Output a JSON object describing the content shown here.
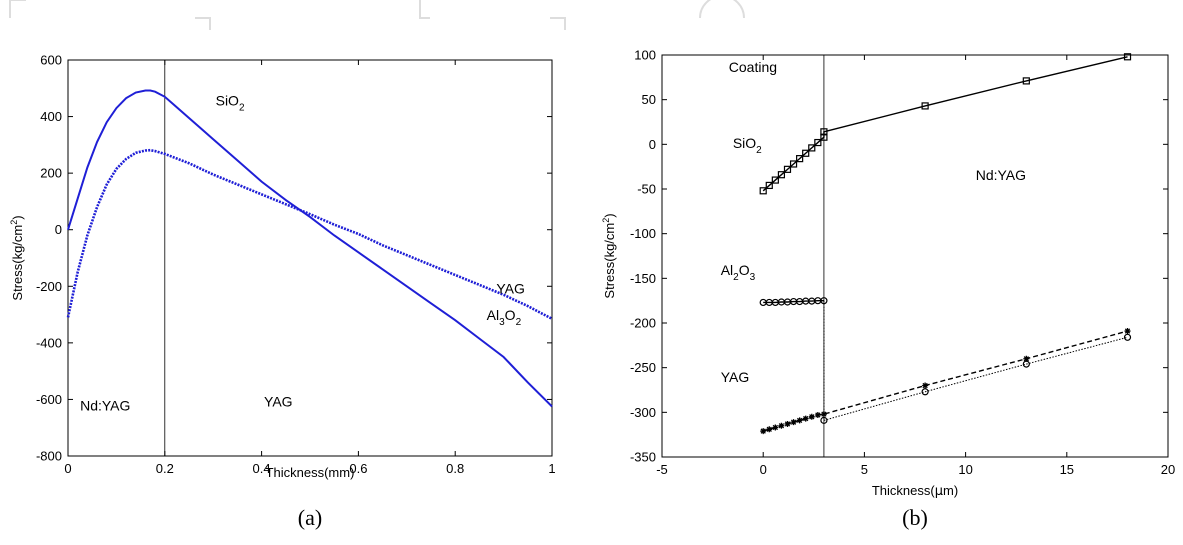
{
  "chart_data": [
    {
      "type": "line",
      "panel_label": "(a)",
      "xlabel": "Thickness(mm)",
      "ylabel": {
        "base": "Stress(kg/cm",
        "sup": "2",
        "tail": ")"
      },
      "xlim": [
        0,
        1
      ],
      "ylim": [
        -800,
        600
      ],
      "xticks": [
        0,
        0.2,
        0.4,
        0.6,
        0.8,
        1
      ],
      "xtick_labels": [
        "0",
        "0.2",
        "0.4",
        "0.6",
        "0.8",
        "1"
      ],
      "yticks": [
        -800,
        -600,
        -400,
        -200,
        0,
        200,
        400,
        600
      ],
      "ytick_labels": [
        "-800",
        "-600",
        "-400",
        "-200",
        "0",
        "200",
        "400",
        "600"
      ],
      "grid": false,
      "vline_x": 0.2,
      "series": [
        {
          "style": "solid",
          "color": "#1f1fd6",
          "x": [
            0,
            0.02,
            0.04,
            0.06,
            0.08,
            0.1,
            0.12,
            0.14,
            0.16,
            0.17,
            0.18,
            0.2,
            0.22,
            0.25,
            0.3,
            0.35,
            0.4,
            0.45,
            0.5,
            0.55,
            0.6,
            0.65,
            0.7,
            0.75,
            0.8,
            0.85,
            0.9,
            0.95,
            1.0
          ],
          "y": [
            0,
            110,
            220,
            310,
            380,
            430,
            465,
            485,
            492,
            492,
            488,
            470,
            440,
            395,
            320,
            245,
            170,
            105,
            45,
            -20,
            -80,
            -140,
            -200,
            -260,
            -320,
            -385,
            -450,
            -540,
            -625
          ]
        },
        {
          "style": "dotted-thick",
          "color": "#1f1fd6",
          "x": [
            0,
            0.02,
            0.04,
            0.06,
            0.08,
            0.1,
            0.12,
            0.14,
            0.16,
            0.17,
            0.18,
            0.2,
            0.25,
            0.3,
            0.35,
            0.4,
            0.45,
            0.5,
            0.55,
            0.6,
            0.65,
            0.7,
            0.75,
            0.8,
            0.85,
            0.9,
            0.95,
            1.0
          ],
          "y": [
            -310,
            -150,
            -20,
            80,
            160,
            215,
            250,
            272,
            280,
            281,
            278,
            268,
            235,
            195,
            160,
            125,
            90,
            55,
            18,
            -15,
            -55,
            -90,
            -125,
            -160,
            -195,
            -230,
            -270,
            -315
          ]
        }
      ],
      "annotations": [
        {
          "x": 0.305,
          "y": 440,
          "base": "SiO",
          "sub": "2"
        },
        {
          "x": 0.885,
          "y": -225,
          "text": "YAG"
        },
        {
          "x": 0.865,
          "y": -320,
          "base": "Al",
          "sub": "3",
          "mid": "O",
          "sub2": "2"
        },
        {
          "x": 0.025,
          "y": -640,
          "text": "Nd:YAG"
        },
        {
          "x": 0.405,
          "y": -625,
          "text": "YAG"
        }
      ]
    },
    {
      "type": "line",
      "panel_label": "(b)",
      "xlabel": {
        "base": "Thickness(",
        "greek": "μ",
        "tail": "m)"
      },
      "ylabel": {
        "base": "Stress(kg/cm",
        "sup": "2",
        "tail": ")"
      },
      "xlim": [
        -5,
        20
      ],
      "ylim": [
        -350,
        100
      ],
      "xticks": [
        -5,
        0,
        5,
        10,
        15,
        20
      ],
      "xtick_labels": [
        "-5",
        "0",
        "5",
        "10",
        "15",
        "20"
      ],
      "yticks": [
        -350,
        -300,
        -250,
        -200,
        -150,
        -100,
        -50,
        0,
        50,
        100
      ],
      "ytick_labels": [
        "-350",
        "-300",
        "-250",
        "-200",
        "-150",
        "-100",
        "-50",
        "0",
        "50",
        "100"
      ],
      "grid": false,
      "vline_x": 3,
      "series": [
        {
          "style": "solid",
          "marker": "square",
          "color": "#000000",
          "x": [
            0,
            0.3,
            0.6,
            0.9,
            1.2,
            1.5,
            1.8,
            2.1,
            2.4,
            2.7,
            3.0,
            3.0,
            8,
            13,
            18
          ],
          "y": [
            -52,
            -46,
            -40,
            -34,
            -28,
            -22,
            -16,
            -10,
            -4,
            2,
            8,
            14,
            43,
            71,
            98
          ]
        },
        {
          "style": "solid",
          "marker": "circle",
          "color": "#000000",
          "x": [
            0,
            0.3,
            0.6,
            0.9,
            1.2,
            1.5,
            1.8,
            2.1,
            2.4,
            2.7,
            3.0
          ],
          "y": [
            -177,
            -177,
            -177,
            -176.5,
            -176.5,
            -176,
            -176,
            -175.5,
            -175.5,
            -175,
            -175
          ]
        },
        {
          "style": "dashed",
          "marker": "star",
          "color": "#000000",
          "x": [
            0,
            0.3,
            0.6,
            0.9,
            1.2,
            1.5,
            1.8,
            2.1,
            2.4,
            2.7,
            3.0,
            8,
            13,
            18
          ],
          "y": [
            -321,
            -319,
            -317,
            -315,
            -313,
            -311,
            -309,
            -307,
            -305,
            -303,
            -302,
            -270,
            -240,
            -209
          ]
        },
        {
          "style": "dotted",
          "marker": "circle",
          "color": "#000000",
          "x": [
            3.0,
            8,
            13,
            18
          ],
          "y": [
            -309,
            -277,
            -246,
            -216
          ]
        }
      ],
      "connector": {
        "style": "dotted",
        "x": 3.0,
        "y": [
          -175,
          -309
        ]
      },
      "annotations": [
        {
          "x": -1.7,
          "y": 81,
          "text": "Coating"
        },
        {
          "x": -1.5,
          "y": -4,
          "base": "SiO",
          "sub": "2"
        },
        {
          "x": 10.5,
          "y": -40,
          "text": "Nd:YAG"
        },
        {
          "x": -2.1,
          "y": -146,
          "base": "Al",
          "sub": "2",
          "mid": "O",
          "sub2": "3"
        },
        {
          "x": -2.1,
          "y": -266,
          "text": "YAG"
        }
      ]
    }
  ]
}
